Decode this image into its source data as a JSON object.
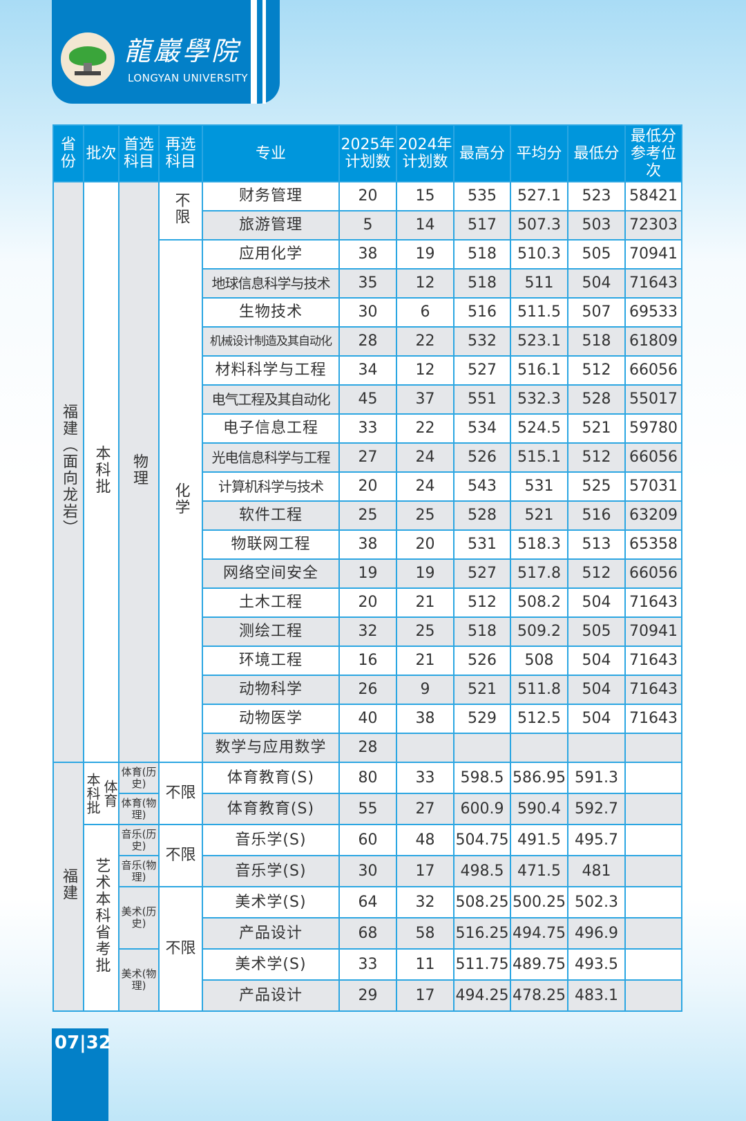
{
  "header": {
    "school_cn": "龍巖學院",
    "school_en": "LONGYAN UNIVERSITY"
  },
  "table": {
    "columns": [
      "省份",
      "批次",
      "首选科目",
      "再选科目",
      "专业",
      "2025年计划数",
      "2024年计划数",
      "最高分",
      "平均分",
      "最低分",
      "最低分参考位次"
    ],
    "section1": {
      "province": "福建（面向龙岩）",
      "batch": "本科批",
      "first_subject": "物理",
      "second_subjects": [
        "不限",
        "化学"
      ],
      "rows": [
        [
          "财务管理",
          "20",
          "15",
          "535",
          "527.1",
          "523",
          "58421"
        ],
        [
          "旅游管理",
          "5",
          "14",
          "517",
          "507.3",
          "503",
          "72303"
        ],
        [
          "应用化学",
          "38",
          "19",
          "518",
          "510.3",
          "505",
          "70941"
        ],
        [
          "地球信息科学与技术",
          "35",
          "12",
          "518",
          "511",
          "504",
          "71643"
        ],
        [
          "生物技术",
          "30",
          "6",
          "516",
          "511.5",
          "507",
          "69533"
        ],
        [
          "机械设计制造及其自动化",
          "28",
          "22",
          "532",
          "523.1",
          "518",
          "61809"
        ],
        [
          "材料科学与工程",
          "34",
          "12",
          "527",
          "516.1",
          "512",
          "66056"
        ],
        [
          "电气工程及其自动化",
          "45",
          "37",
          "551",
          "532.3",
          "528",
          "55017"
        ],
        [
          "电子信息工程",
          "33",
          "22",
          "534",
          "524.5",
          "521",
          "59780"
        ],
        [
          "光电信息科学与工程",
          "27",
          "24",
          "526",
          "515.1",
          "512",
          "66056"
        ],
        [
          "计算机科学与技术",
          "20",
          "24",
          "543",
          "531",
          "525",
          "57031"
        ],
        [
          "软件工程",
          "25",
          "25",
          "528",
          "521",
          "516",
          "63209"
        ],
        [
          "物联网工程",
          "38",
          "20",
          "531",
          "518.3",
          "513",
          "65358"
        ],
        [
          "网络空间安全",
          "19",
          "19",
          "527",
          "517.8",
          "512",
          "66056"
        ],
        [
          "土木工程",
          "20",
          "21",
          "512",
          "508.2",
          "504",
          "71643"
        ],
        [
          "测绘工程",
          "32",
          "25",
          "518",
          "509.2",
          "505",
          "70941"
        ],
        [
          "环境工程",
          "16",
          "21",
          "526",
          "508",
          "504",
          "71643"
        ],
        [
          "动物科学",
          "26",
          "9",
          "521",
          "511.8",
          "504",
          "71643"
        ],
        [
          "动物医学",
          "40",
          "38",
          "529",
          "512.5",
          "504",
          "71643"
        ],
        [
          "数学与应用数学",
          "28",
          "",
          "",
          "",
          "",
          ""
        ]
      ]
    },
    "section2": {
      "province": "福建",
      "batches": [
        {
          "main": "本科批",
          "sub": "体育"
        },
        {
          "main": "艺术本科省考批"
        }
      ],
      "first_subjects": [
        "体育(历史)",
        "体育(物理)",
        "音乐(历史)",
        "音乐(物理)",
        "美术(历史)",
        "美术(物理)"
      ],
      "second_subjects": [
        "不限",
        "不限",
        "不限"
      ],
      "rows": [
        [
          "体育教育(S)",
          "80",
          "33",
          "598.5",
          "586.95",
          "591.3",
          ""
        ],
        [
          "体育教育(S)",
          "55",
          "27",
          "600.9",
          "590.4",
          "592.7",
          ""
        ],
        [
          "音乐学(S)",
          "60",
          "48",
          "504.75",
          "491.5",
          "495.7",
          ""
        ],
        [
          "音乐学(S)",
          "30",
          "17",
          "498.5",
          "471.5",
          "481",
          ""
        ],
        [
          "美术学(S)",
          "64",
          "32",
          "508.25",
          "500.25",
          "502.3",
          ""
        ],
        [
          "产品设计",
          "68",
          "58",
          "516.25",
          "494.75",
          "496.9",
          ""
        ],
        [
          "美术学(S)",
          "33",
          "11",
          "511.75",
          "489.75",
          "493.5",
          ""
        ],
        [
          "产品设计",
          "29",
          "17",
          "494.25",
          "478.25",
          "483.1",
          ""
        ]
      ]
    }
  },
  "footer": {
    "page": "07|32"
  }
}
